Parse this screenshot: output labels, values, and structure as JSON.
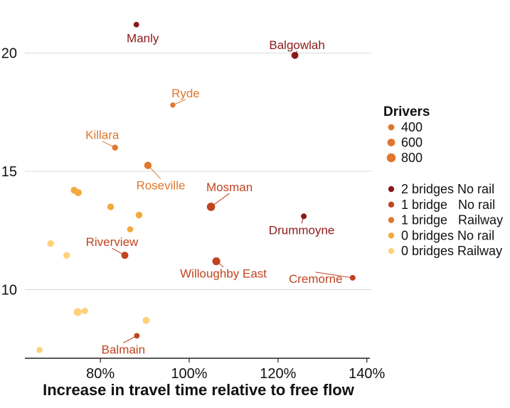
{
  "chart_data": {
    "type": "scatter",
    "title": "",
    "xlabel": "Increase in travel time relative to free flow",
    "ylabel": "",
    "xlim": [
      0.63,
      1.41
    ],
    "ylim": [
      7.1,
      22.0
    ],
    "x_ticks": [
      0.8,
      1.0,
      1.2,
      1.4
    ],
    "x_tick_labels": [
      "80%",
      "100%",
      "120%",
      "140%"
    ],
    "y_ticks": [
      10,
      15,
      20
    ],
    "y_tick_labels": [
      "10",
      "15",
      "20"
    ],
    "grid": "horizontal",
    "legend": {
      "placement": "right",
      "size_title": "Drivers",
      "size_entries": [
        {
          "label": "400",
          "value": 400
        },
        {
          "label": "600",
          "value": 600
        },
        {
          "label": "800",
          "value": 800
        }
      ],
      "color_entries": [
        {
          "key": "2nr",
          "label": "2 bridges No rail",
          "color": "#8b1a1a"
        },
        {
          "key": "1nr",
          "label": "1 bridge   No rail",
          "color": "#c0441f"
        },
        {
          "key": "1r",
          "label": "1 bridge   Railway",
          "color": "#e0772b"
        },
        {
          "key": "0nr",
          "label": "0 bridges No rail",
          "color": "#f3a93b"
        },
        {
          "key": "0r",
          "label": "0 bridges Railway",
          "color": "#fdd27a"
        }
      ]
    },
    "points": [
      {
        "x": 0.881,
        "y": 21.2,
        "drivers": 320,
        "group": "2nr",
        "label": "Manly"
      },
      {
        "x": 1.238,
        "y": 19.9,
        "drivers": 500,
        "group": "2nr",
        "label": "Balgowlah"
      },
      {
        "x": 1.258,
        "y": 13.1,
        "drivers": 330,
        "group": "2nr",
        "label": "Drummoyne"
      },
      {
        "x": 1.368,
        "y": 10.5,
        "drivers": 330,
        "group": "1nr",
        "label": "Cremorne"
      },
      {
        "x": 1.049,
        "y": 13.5,
        "drivers": 700,
        "group": "1nr",
        "label": "Mosman"
      },
      {
        "x": 1.061,
        "y": 11.2,
        "drivers": 640,
        "group": "1nr",
        "label": "Willoughby East"
      },
      {
        "x": 0.855,
        "y": 11.45,
        "drivers": 520,
        "group": "1nr",
        "label": "Riverview"
      },
      {
        "x": 0.882,
        "y": 8.05,
        "drivers": 320,
        "group": "1nr",
        "label": "Balmain"
      },
      {
        "x": 0.963,
        "y": 17.8,
        "drivers": 280,
        "group": "1r",
        "label": "Ryde"
      },
      {
        "x": 0.833,
        "y": 16.0,
        "drivers": 360,
        "group": "1r",
        "label": "Killara"
      },
      {
        "x": 0.907,
        "y": 15.25,
        "drivers": 560,
        "group": "1r",
        "label": "Roseville"
      },
      {
        "x": 0.741,
        "y": 14.2,
        "drivers": 480,
        "group": "0nr",
        "label": ""
      },
      {
        "x": 0.75,
        "y": 14.1,
        "drivers": 520,
        "group": "0nr",
        "label": ""
      },
      {
        "x": 0.823,
        "y": 13.5,
        "drivers": 450,
        "group": "0nr",
        "label": ""
      },
      {
        "x": 0.887,
        "y": 13.15,
        "drivers": 450,
        "group": "0nr",
        "label": ""
      },
      {
        "x": 0.867,
        "y": 12.55,
        "drivers": 380,
        "group": "0nr",
        "label": ""
      },
      {
        "x": 0.688,
        "y": 11.95,
        "drivers": 460,
        "group": "0r",
        "label": ""
      },
      {
        "x": 0.724,
        "y": 11.45,
        "drivers": 460,
        "group": "0r",
        "label": ""
      },
      {
        "x": 0.749,
        "y": 9.05,
        "drivers": 640,
        "group": "0r",
        "label": ""
      },
      {
        "x": 0.765,
        "y": 9.1,
        "drivers": 420,
        "group": "0r",
        "label": ""
      },
      {
        "x": 0.903,
        "y": 8.7,
        "drivers": 520,
        "group": "0r",
        "label": ""
      },
      {
        "x": 0.663,
        "y": 7.45,
        "drivers": 380,
        "group": "0r",
        "label": ""
      }
    ]
  }
}
